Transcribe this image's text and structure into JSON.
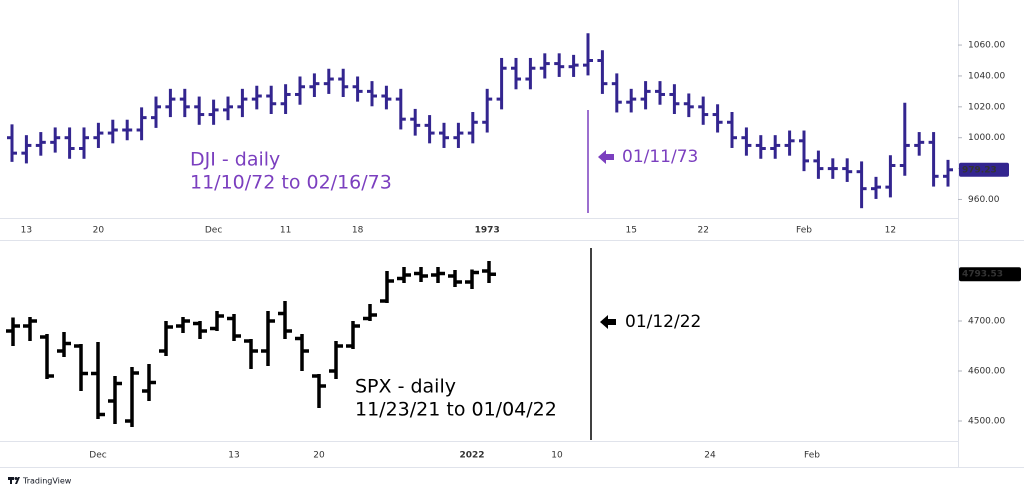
{
  "chart_data": [
    {
      "type": "ohlc",
      "title": "DJI - daily",
      "subtitle": "11/10/72 to 02/16/73",
      "marker_label": "01/11/73",
      "color": "#33258f",
      "annotation_color": "#7b3fbf",
      "categories": [
        null,
        "13",
        null,
        null,
        null,
        null,
        "20",
        null,
        null,
        null,
        null,
        null,
        null,
        null,
        "Dec",
        null,
        null,
        null,
        null,
        "11",
        null,
        null,
        null,
        null,
        "18",
        null,
        null,
        null,
        null,
        null,
        null,
        null,
        null,
        "1973",
        null,
        null,
        null,
        null,
        null,
        null,
        null,
        null,
        null,
        "15",
        null,
        null,
        null,
        null,
        "22",
        null,
        null,
        null,
        null,
        null,
        null,
        "Feb",
        null,
        null,
        null,
        null,
        null,
        "12",
        null,
        null,
        null,
        null
      ],
      "open": [
        1000,
        990,
        995,
        997,
        1000,
        993,
        1000,
        1003,
        1005,
        1005,
        1013,
        1020,
        1025,
        1020,
        1015,
        1018,
        1020,
        1025,
        1027,
        1022,
        1028,
        1033,
        1035,
        1038,
        1033,
        1030,
        1027,
        1025,
        1012,
        1008,
        1003,
        1000,
        1003,
        1010,
        1025,
        1045,
        1038,
        1045,
        1048,
        1046,
        1047,
        1050,
        1035,
        1023,
        1025,
        1030,
        1028,
        1022,
        1020,
        1015,
        1010,
        1000,
        995,
        993,
        995,
        998,
        985,
        980,
        980,
        978,
        967,
        968,
        982,
        995,
        997,
        975
      ],
      "high": [
        1008,
        1001,
        1003,
        1006,
        1006,
        1006,
        1009,
        1011,
        1011,
        1019,
        1026,
        1031,
        1031,
        1026,
        1024,
        1026,
        1031,
        1033,
        1033,
        1034,
        1039,
        1041,
        1044,
        1044,
        1039,
        1036,
        1033,
        1031,
        1018,
        1014,
        1009,
        1009,
        1016,
        1031,
        1051,
        1051,
        1051,
        1054,
        1054,
        1053,
        1067,
        1056,
        1041,
        1031,
        1036,
        1036,
        1034,
        1028,
        1026,
        1021,
        1016,
        1006,
        1001,
        1001,
        1004,
        1004,
        991,
        986,
        986,
        984,
        974,
        988,
        1022,
        1003,
        1003,
        985
      ],
      "low": [
        985,
        984,
        989,
        991,
        987,
        987,
        994,
        997,
        999,
        999,
        1007,
        1014,
        1014,
        1009,
        1009,
        1012,
        1014,
        1019,
        1016,
        1016,
        1022,
        1027,
        1029,
        1027,
        1024,
        1021,
        1019,
        1006,
        1002,
        997,
        994,
        994,
        997,
        1004,
        1019,
        1032,
        1032,
        1039,
        1040,
        1040,
        1041,
        1029,
        1017,
        1017,
        1019,
        1022,
        1016,
        1014,
        1009,
        1004,
        994,
        989,
        987,
        987,
        989,
        979,
        974,
        974,
        972,
        955,
        961,
        962,
        976,
        989,
        969,
        969
      ],
      "close": [
        990,
        995,
        997,
        1000,
        993,
        1000,
        1003,
        1005,
        1005,
        1013,
        1020,
        1025,
        1020,
        1015,
        1018,
        1020,
        1025,
        1027,
        1022,
        1028,
        1033,
        1035,
        1038,
        1033,
        1030,
        1027,
        1025,
        1012,
        1008,
        1003,
        1000,
        1003,
        1010,
        1025,
        1045,
        1038,
        1045,
        1048,
        1046,
        1047,
        1050,
        1035,
        1023,
        1025,
        1030,
        1028,
        1022,
        1020,
        1015,
        1010,
        1000,
        995,
        993,
        995,
        998,
        985,
        980,
        980,
        978,
        967,
        968,
        982,
        995,
        997,
        975,
        979.23
      ],
      "ylim": [
        948,
        1084
      ],
      "yticks": [
        {
          "value": 960,
          "label": "960.00"
        },
        {
          "value": 980,
          "label": "980.00"
        },
        {
          "value": 1000,
          "label": "1000.00"
        },
        {
          "value": 1020,
          "label": "1020.00"
        },
        {
          "value": 1040,
          "label": "1040.00"
        },
        {
          "value": 1060,
          "label": "1060.00"
        }
      ]
    },
    {
      "type": "ohlc",
      "title": "SPX - daily",
      "subtitle": "11/23/21 to 01/04/22",
      "marker_label": "01/12/22",
      "color": "#000000",
      "annotation_color": "#000000",
      "categories": [
        null,
        null,
        null,
        null,
        null,
        "Dec",
        null,
        null,
        null,
        null,
        null,
        null,
        null,
        "13",
        null,
        null,
        null,
        null,
        "20",
        null,
        null,
        null,
        null,
        null,
        null,
        null,
        null,
        "2022",
        null,
        null,
        null,
        null,
        "10",
        null,
        null,
        null,
        null,
        null,
        null,
        null,
        null,
        "24",
        null,
        null,
        null,
        null,
        null,
        "Feb",
        null,
        null,
        null,
        null,
        null,
        null,
        null,
        null
      ],
      "open": [
        4680,
        4690,
        4668,
        4640,
        4650,
        4595,
        4540,
        4500,
        4560,
        4640,
        4690,
        4695,
        4685,
        4705,
        4660,
        4640,
        4715,
        4665,
        4590,
        4600,
        4650,
        4705,
        4740,
        4785,
        4795,
        4792,
        4790,
        4778,
        4800,
        null,
        null,
        null,
        null,
        null,
        null,
        null,
        null,
        null,
        null,
        null,
        null,
        null,
        null,
        null,
        null,
        null,
        null,
        null,
        null,
        null,
        null,
        null,
        null,
        null,
        null,
        null
      ],
      "high": [
        4705,
        4706,
        4672,
        4676,
        4652,
        4656,
        4588,
        4606,
        4612,
        4698,
        4706,
        4698,
        4718,
        4712,
        4662,
        4718,
        4738,
        4672,
        4592,
        4658,
        4698,
        4732,
        4798,
        4806,
        4806,
        4806,
        4800,
        4801,
        4818,
        null,
        null,
        null,
        null,
        null,
        null,
        null,
        null,
        null,
        null,
        null,
        null,
        null,
        null,
        null,
        null,
        null,
        null,
        null,
        null,
        null,
        null,
        null,
        null,
        null,
        null,
        null
      ],
      "low": [
        4652,
        4662,
        4586,
        4630,
        4562,
        4506,
        4496,
        4490,
        4542,
        4632,
        4678,
        4666,
        4682,
        4662,
        4606,
        4612,
        4666,
        4602,
        4528,
        4586,
        4646,
        4702,
        4738,
        4778,
        4780,
        4778,
        4770,
        4766,
        4778,
        null,
        null,
        null,
        null,
        null,
        null,
        null,
        null,
        null,
        null,
        null,
        null,
        null,
        null,
        null,
        null,
        null,
        null,
        null,
        null,
        null,
        null,
        null,
        null,
        null,
        null,
        null
      ],
      "close": [
        4690,
        4700,
        4590,
        4655,
        4595,
        4513,
        4575,
        4596,
        4577,
        4688,
        4700,
        4680,
        4710,
        4670,
        4640,
        4700,
        4680,
        4640,
        4570,
        4650,
        4690,
        4712,
        4780,
        4792,
        4790,
        4795,
        4778,
        4797,
        4793.53,
        null,
        null,
        null,
        null,
        null,
        null,
        null,
        null,
        null,
        null,
        null,
        null,
        null,
        null,
        null,
        null,
        null,
        null,
        null,
        null,
        null,
        null,
        null,
        null,
        null,
        null,
        null
      ],
      "ylim": [
        4462,
        4846
      ],
      "yticks": [
        {
          "value": 4500,
          "label": "4500.00"
        },
        {
          "value": 4600,
          "label": "4600.00"
        },
        {
          "value": 4700,
          "label": "4700.00"
        }
      ]
    }
  ],
  "footer": "TradingView"
}
